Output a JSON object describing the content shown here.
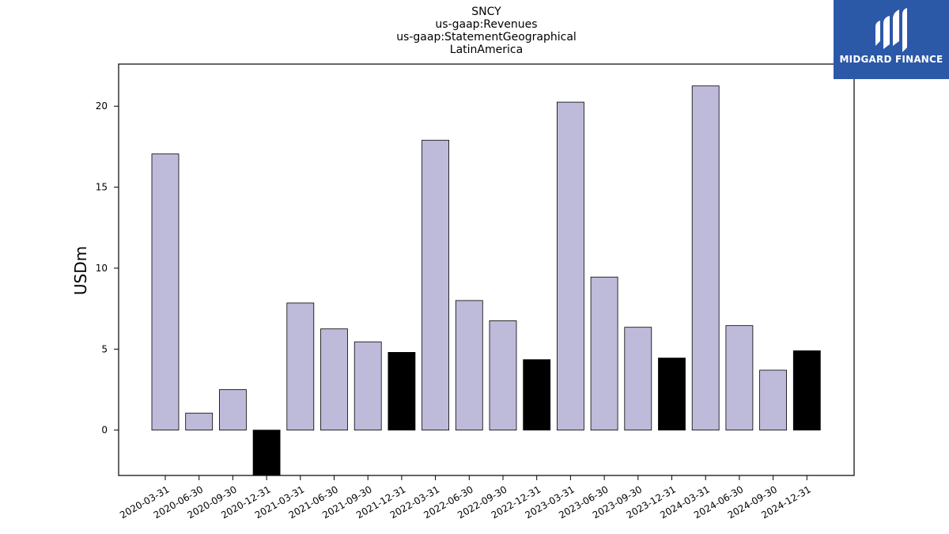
{
  "title_lines": [
    "SNCY",
    "us-gaap:Revenues",
    "us-gaap:StatementGeographical",
    "LatinAmerica"
  ],
  "logo": {
    "text": "MIDGARD FINANCE",
    "color": "#2c58a8",
    "icon": "midgard-logo-icon"
  },
  "colors": {
    "normal_bar": "#bebad9",
    "highlight_bar": "#000000"
  },
  "chart_data": {
    "type": "bar",
    "title": "SNCY us-gaap:Revenues us-gaap:StatementGeographical LatinAmerica",
    "xlabel": "",
    "ylabel": "USDm",
    "ylim": [
      -2.8,
      22.6
    ],
    "yticks": [
      0,
      5,
      10,
      15,
      20
    ],
    "grid": false,
    "legend": "none",
    "categories": [
      "2020-03-31",
      "2020-06-30",
      "2020-09-30",
      "2020-12-31",
      "2021-03-31",
      "2021-06-30",
      "2021-09-30",
      "2021-12-31",
      "2022-03-31",
      "2022-06-30",
      "2022-09-30",
      "2022-12-31",
      "2023-03-31",
      "2023-06-30",
      "2023-09-30",
      "2023-12-31",
      "2024-03-31",
      "2024-06-30",
      "2024-09-30",
      "2024-12-31"
    ],
    "values": [
      17.05,
      1.05,
      2.5,
      -3.2,
      7.85,
      6.25,
      5.45,
      4.8,
      17.9,
      8.0,
      6.75,
      4.35,
      20.25,
      9.45,
      6.35,
      4.45,
      21.25,
      6.45,
      3.7,
      4.9
    ],
    "highlighted": [
      false,
      false,
      false,
      true,
      false,
      false,
      false,
      true,
      false,
      false,
      false,
      true,
      false,
      false,
      false,
      true,
      false,
      false,
      false,
      true
    ]
  }
}
